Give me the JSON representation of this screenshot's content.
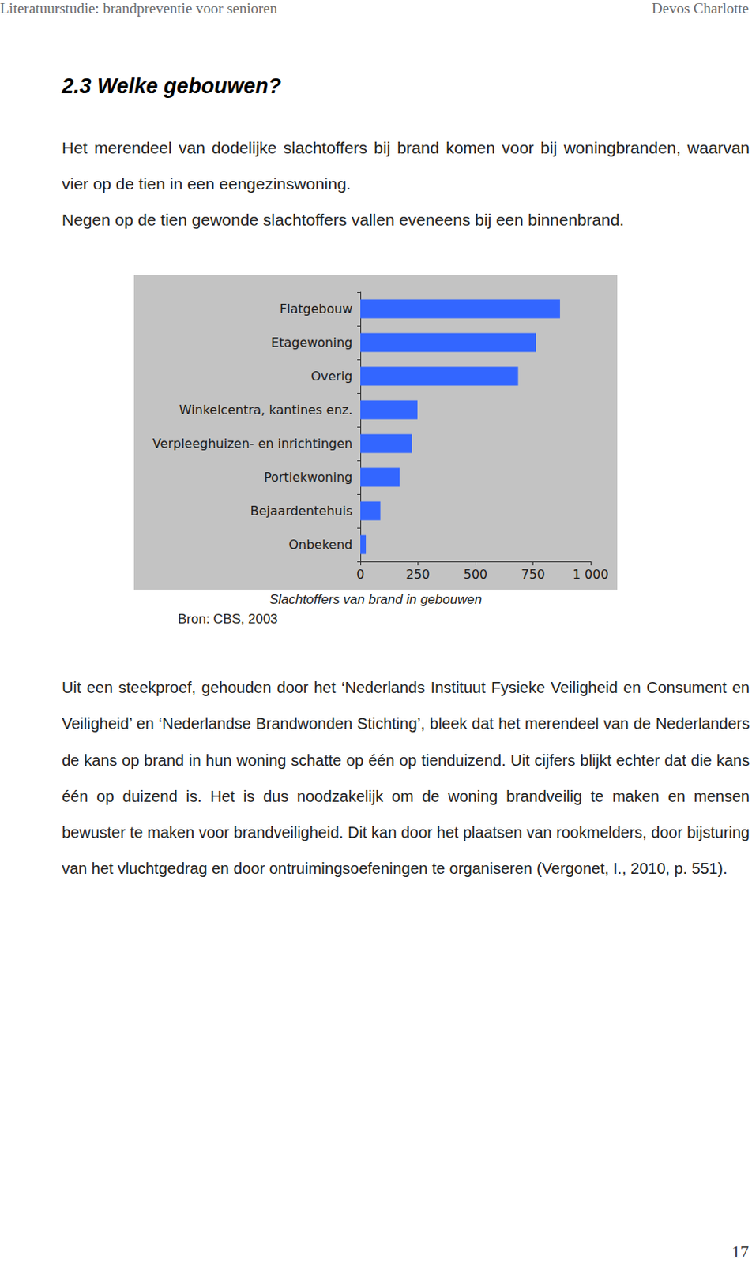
{
  "header": {
    "left": "Literatuurstudie: brandpreventie voor senioren",
    "right": "Devos Charlotte"
  },
  "heading": "2.3 Welke gebouwen?",
  "intro": [
    "Het merendeel van dodelijke slachtoffers bij brand komen voor bij woningbranden, waarvan vier op de tien in een eengezinswoning.",
    "Negen op de tien gewonde slachtoffers vallen eveneens bij een binnenbrand."
  ],
  "chart_data": {
    "type": "bar",
    "orientation": "horizontal",
    "title": "Slachtoffers van brand in gebouwen",
    "categories": [
      "Flatgebouw",
      "Etagewoning",
      "Overig",
      "Winkelcentra, kantines enz.",
      "Verpleeghuizen- en inrichtingen",
      "Portiekwoning",
      "Bejaardentehuis",
      "Onbekend"
    ],
    "values": [
      867,
      762,
      685,
      248,
      224,
      171,
      87,
      24
    ],
    "color": "#3366ff",
    "xlim": [
      0,
      1000
    ],
    "xticks": [
      0,
      250,
      500,
      750,
      {
        "value": 1000,
        "label": "1 000"
      }
    ],
    "grid": false
  },
  "source": "Bron: CBS, 2003",
  "body": "Uit een steekproef, gehouden door het ‘Nederlands Instituut Fysieke Veiligheid en Consument en Veiligheid’ en ‘Nederlandse Brandwonden Stichting’, bleek dat het merendeel van de Nederlanders de kans op brand in hun woning schatte op één op tienduizend. Uit cijfers blijkt echter dat die kans één op duizend is. Het is dus noodzakelijk om de woning brandveilig te maken en mensen bewuster te maken voor brandveiligheid. Dit kan door het plaatsen van rookmelders, door bijsturing van het vluchtgedrag en door ontruimingsoefeningen te organiseren (Vergonet, I., 2010, p. 551).",
  "page_number": "17"
}
